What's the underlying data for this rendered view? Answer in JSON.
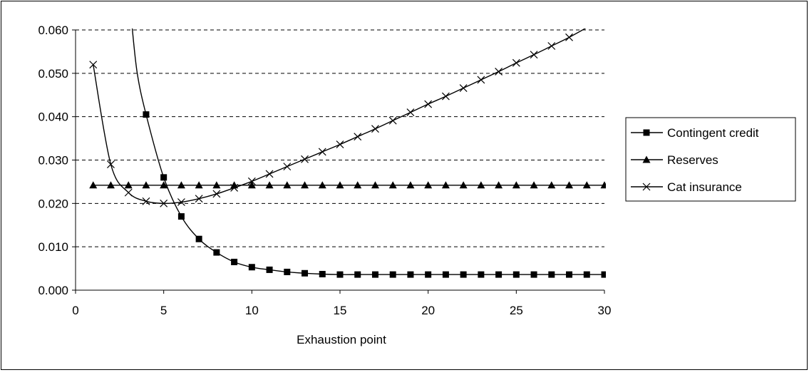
{
  "chart_data": {
    "type": "line",
    "title": "",
    "xlabel": "Exhaustion point",
    "ylabel": "",
    "xlim": [
      0,
      30
    ],
    "ylim": [
      0,
      0.06
    ],
    "x_ticks": [
      "0",
      "5",
      "10",
      "15",
      "20",
      "25",
      "30"
    ],
    "y_ticks": [
      "0.000",
      "0.010",
      "0.020",
      "0.030",
      "0.040",
      "0.050",
      "0.060"
    ],
    "grid": "horizontal dashed",
    "legend_position": "right",
    "series": [
      {
        "name": "Contingent credit",
        "marker": "square",
        "color": "#000000",
        "x": [
          4,
          5,
          6,
          7,
          8,
          9,
          10,
          11,
          12,
          13,
          14,
          15,
          16,
          17,
          18,
          19,
          20,
          21,
          22,
          23,
          24,
          25,
          26,
          27,
          28,
          29,
          30
        ],
        "values": [
          0.0405,
          0.026,
          0.017,
          0.0118,
          0.0087,
          0.0065,
          0.0053,
          0.0047,
          0.0042,
          0.0039,
          0.0037,
          0.0036,
          0.0036,
          0.0036,
          0.0036,
          0.0036,
          0.0036,
          0.0036,
          0.0036,
          0.0036,
          0.0036,
          0.0036,
          0.0036,
          0.0036,
          0.0036,
          0.0036,
          0.0036
        ],
        "curve_leading_x": [
          3.2,
          3.5
        ],
        "curve_leading_values": [
          0.061,
          0.05
        ]
      },
      {
        "name": "Reserves",
        "marker": "triangle",
        "color": "#000000",
        "x": [
          1,
          2,
          3,
          4,
          5,
          6,
          7,
          8,
          9,
          10,
          11,
          12,
          13,
          14,
          15,
          16,
          17,
          18,
          19,
          20,
          21,
          22,
          23,
          24,
          25,
          26,
          27,
          28,
          29,
          30
        ],
        "values": [
          0.0242,
          0.0242,
          0.0242,
          0.0242,
          0.0242,
          0.0242,
          0.0242,
          0.0242,
          0.0242,
          0.0242,
          0.0242,
          0.0242,
          0.0242,
          0.0242,
          0.0242,
          0.0242,
          0.0242,
          0.0242,
          0.0242,
          0.0242,
          0.0242,
          0.0242,
          0.0242,
          0.0242,
          0.0242,
          0.0242,
          0.0242,
          0.0242,
          0.0242,
          0.0242
        ]
      },
      {
        "name": "Cat insurance",
        "marker": "x",
        "color": "#000000",
        "x": [
          1,
          2,
          3,
          4,
          5,
          6,
          7,
          8,
          9,
          10,
          11,
          12,
          13,
          14,
          15,
          16,
          17,
          18,
          19,
          20,
          21,
          22,
          23,
          24,
          25,
          26,
          27,
          28
        ],
        "values": [
          0.052,
          0.029,
          0.0225,
          0.0205,
          0.02,
          0.0203,
          0.0211,
          0.0222,
          0.0236,
          0.0251,
          0.0268,
          0.0285,
          0.0302,
          0.0319,
          0.0336,
          0.0354,
          0.0372,
          0.0391,
          0.041,
          0.0429,
          0.0447,
          0.0466,
          0.0485,
          0.0504,
          0.0524,
          0.0543,
          0.0563,
          0.0583
        ],
        "curve_trailing_x": [
          29.2
        ],
        "curve_trailing_values": [
          0.061
        ]
      }
    ]
  }
}
